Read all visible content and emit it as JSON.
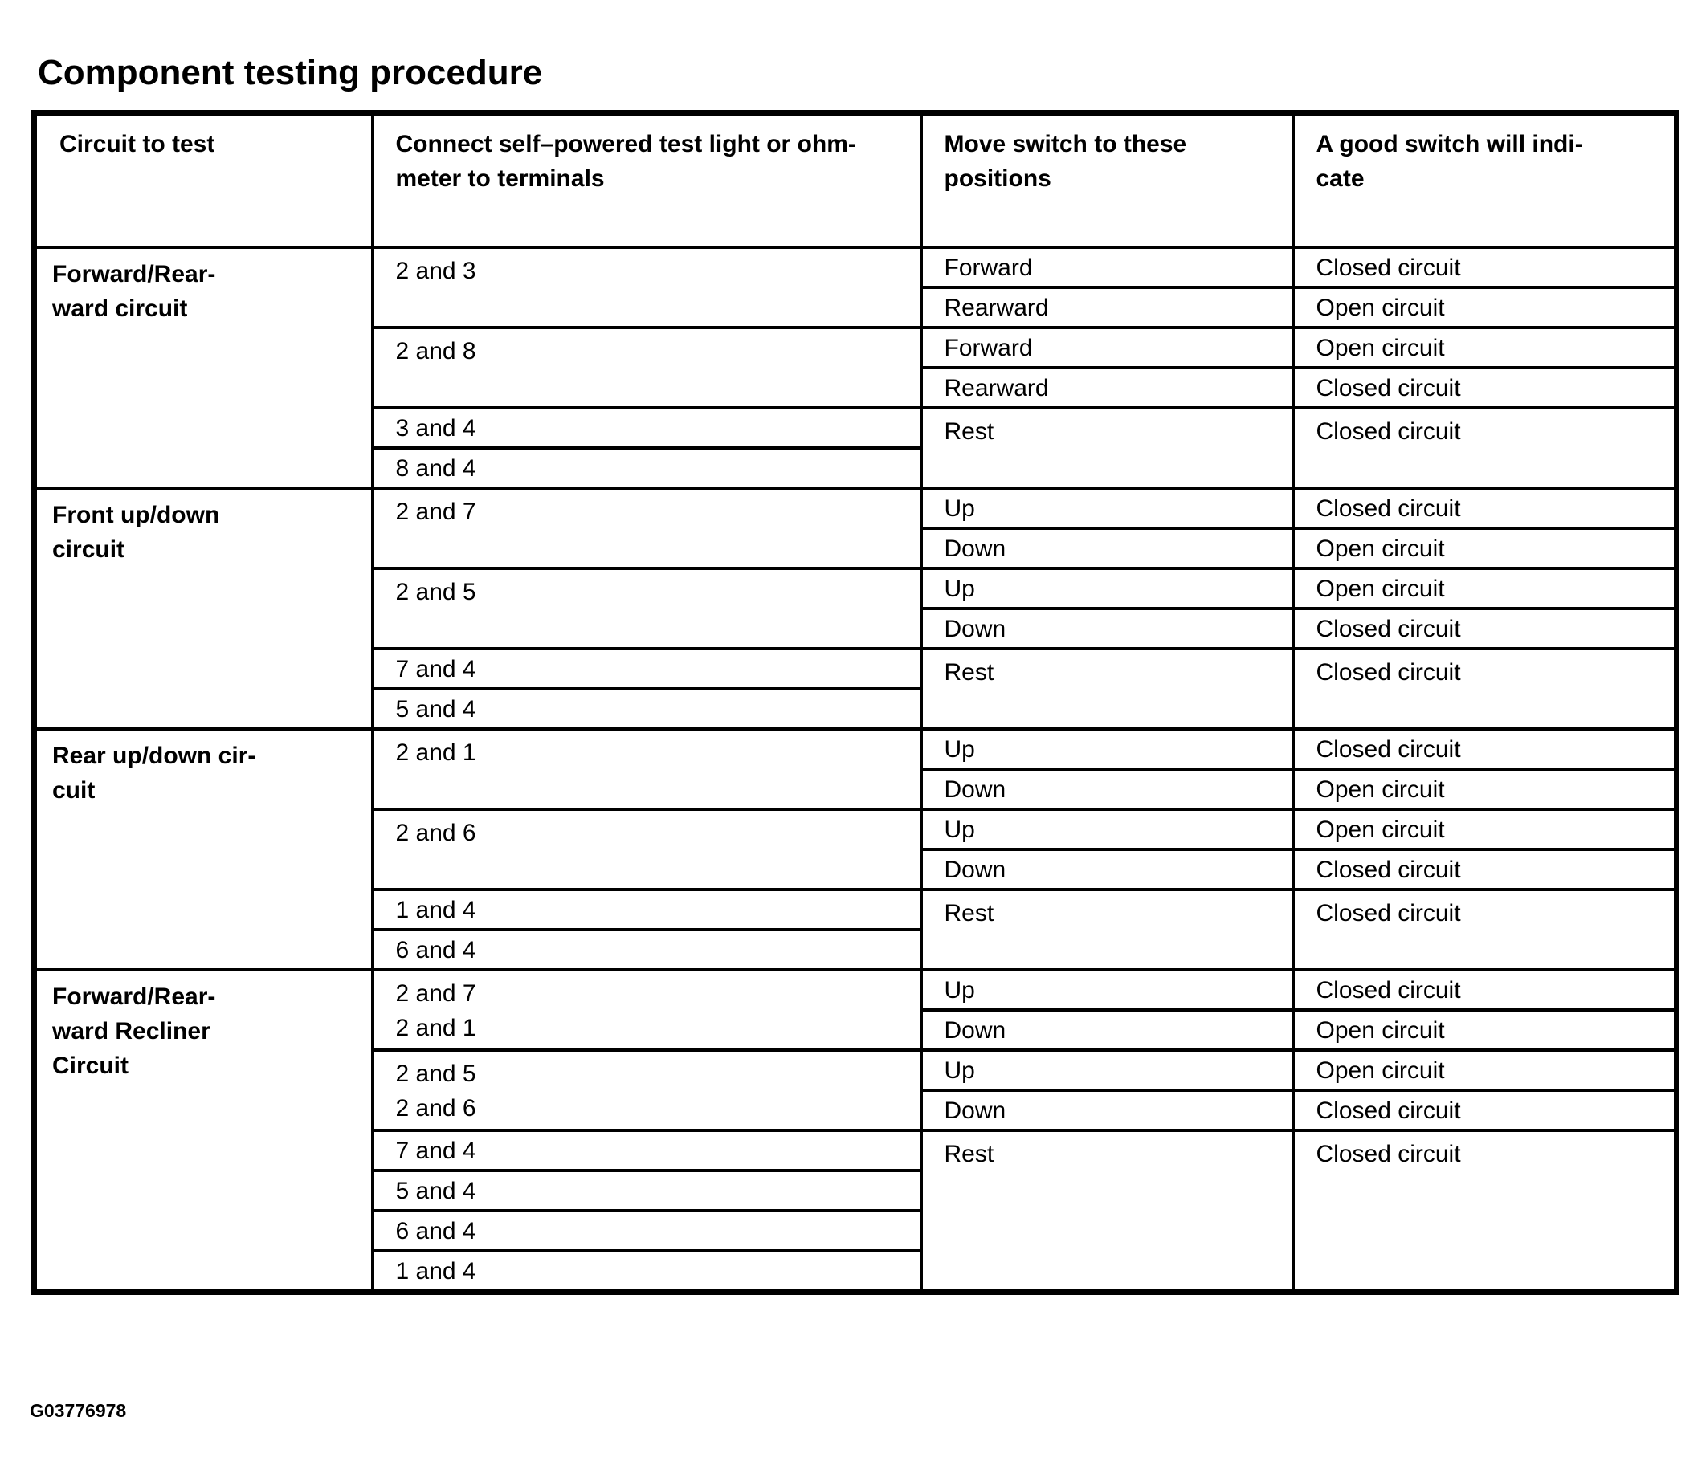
{
  "title": "Component testing procedure",
  "headers": [
    "Circuit to test",
    "Connect self–powered test light or ohm-meter to terminals",
    "Move switch to these positions",
    "A good switch will indi-cate"
  ],
  "header_lines": [
    [
      "Circuit to test"
    ],
    [
      "Connect self–powered test light or ohm-",
      "meter to terminals"
    ],
    [
      "Move switch to these",
      "positions"
    ],
    [
      "A good switch will indi-",
      "cate"
    ]
  ],
  "sections": [
    {
      "circuit_lines": [
        "Forward/Rear-",
        "ward circuit"
      ],
      "groups": [
        {
          "terminals": [
            "2 and 3"
          ],
          "tests": [
            {
              "position": "Forward",
              "result": "Closed circuit"
            },
            {
              "position": "Rearward",
              "result": "Open circuit"
            }
          ]
        },
        {
          "terminals": [
            "2 and 8"
          ],
          "tests": [
            {
              "position": "Forward",
              "result": "Open circuit"
            },
            {
              "position": "Rearward",
              "result": "Closed circuit"
            }
          ]
        },
        {
          "terminals": [
            "3 and 4",
            "8 and 4"
          ],
          "tests": [
            {
              "position": "Rest",
              "result": "Closed circuit"
            }
          ]
        }
      ]
    },
    {
      "circuit_lines": [
        "Front up/down",
        "circuit"
      ],
      "groups": [
        {
          "terminals": [
            "2 and 7"
          ],
          "tests": [
            {
              "position": "Up",
              "result": "Closed circuit"
            },
            {
              "position": "Down",
              "result": "Open circuit"
            }
          ]
        },
        {
          "terminals": [
            "2 and 5"
          ],
          "tests": [
            {
              "position": "Up",
              "result": "Open circuit"
            },
            {
              "position": "Down",
              "result": "Closed circuit"
            }
          ]
        },
        {
          "terminals": [
            "7 and 4",
            "5 and 4"
          ],
          "tests": [
            {
              "position": "Rest",
              "result": "Closed circuit"
            }
          ]
        }
      ]
    },
    {
      "circuit_lines": [
        "Rear up/down cir-",
        "cuit"
      ],
      "groups": [
        {
          "terminals": [
            "2 and 1"
          ],
          "tests": [
            {
              "position": "Up",
              "result": "Closed circuit"
            },
            {
              "position": "Down",
              "result": "Open circuit"
            }
          ]
        },
        {
          "terminals": [
            "2 and 6"
          ],
          "tests": [
            {
              "position": "Up",
              "result": "Open circuit"
            },
            {
              "position": "Down",
              "result": "Closed circuit"
            }
          ]
        },
        {
          "terminals": [
            "1 and 4",
            "6 and 4"
          ],
          "tests": [
            {
              "position": "Rest",
              "result": "Closed circuit"
            }
          ]
        }
      ]
    },
    {
      "circuit_lines": [
        "Forward/Rear-",
        "ward Recliner",
        "Circuit"
      ],
      "groups": [
        {
          "terminals": [
            "2 and 7",
            "2 and 1"
          ],
          "tests": [
            {
              "position": "Up",
              "result": "Closed circuit"
            },
            {
              "position": "Down",
              "result": "Open circuit"
            }
          ]
        },
        {
          "terminals": [
            "2 and 5",
            "2 and 6"
          ],
          "tests": [
            {
              "position": "Up",
              "result": "Open circuit"
            },
            {
              "position": "Down",
              "result": "Closed circuit"
            }
          ]
        },
        {
          "terminals": [
            "7 and 4",
            "5 and 4",
            "6 and 4",
            "1 and 4"
          ],
          "tests": [
            {
              "position": "Rest",
              "result": "Closed circuit"
            }
          ]
        }
      ]
    }
  ],
  "figure_id": "G03776978"
}
